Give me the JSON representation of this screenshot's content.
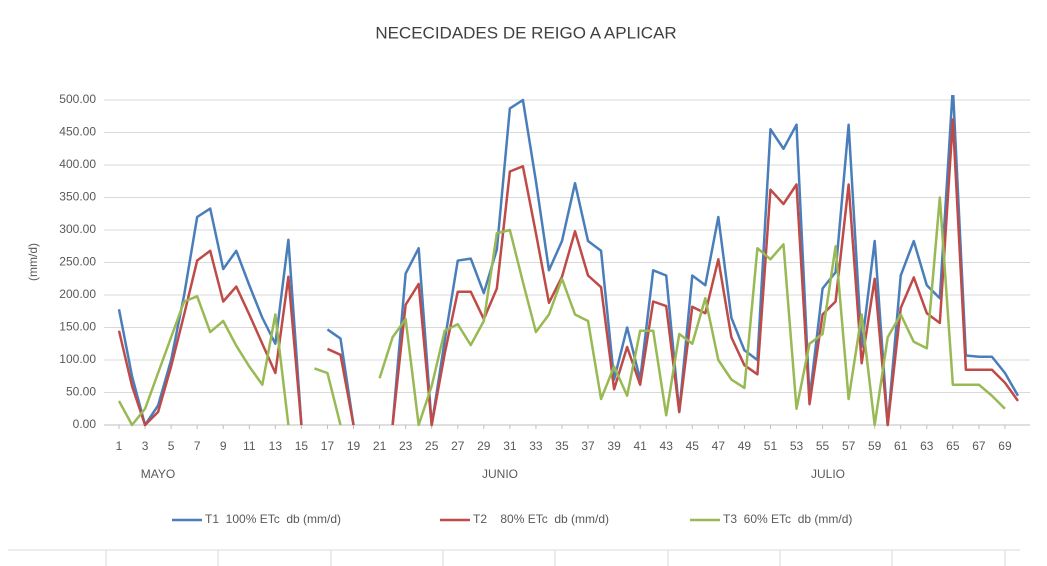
{
  "chart_data": {
    "type": "line",
    "title": "NECECIDADES DE REIGO A APLICAR",
    "y_label": "(mm/d)",
    "annotations": [
      "MAYO",
      "JUNIO",
      "JULIO"
    ],
    "x": [
      1,
      2,
      3,
      4,
      5,
      6,
      7,
      8,
      9,
      10,
      11,
      12,
      13,
      14,
      15,
      16,
      17,
      18,
      19,
      20,
      21,
      22,
      23,
      24,
      25,
      26,
      27,
      28,
      29,
      30,
      31,
      32,
      33,
      34,
      35,
      36,
      37,
      38,
      39,
      40,
      41,
      42,
      43,
      44,
      45,
      46,
      47,
      48,
      49,
      50,
      51,
      52,
      53,
      54,
      55,
      56,
      57,
      58,
      59,
      60,
      61,
      62,
      63,
      64,
      65,
      66,
      67,
      68,
      69,
      70
    ],
    "xlim": [
      1,
      70
    ],
    "xticks": [
      1,
      3,
      5,
      7,
      9,
      11,
      13,
      15,
      17,
      19,
      21,
      23,
      25,
      27,
      29,
      31,
      33,
      35,
      37,
      39,
      41,
      43,
      45,
      47,
      49,
      51,
      53,
      55,
      57,
      59,
      61,
      63,
      65,
      67,
      69
    ],
    "ylim": [
      0,
      500
    ],
    "yticks": [
      {
        "value": 0,
        "label": "0.00"
      },
      {
        "value": 50,
        "label": "50.00"
      },
      {
        "value": 100,
        "label": "100.00"
      },
      {
        "value": 150,
        "label": "150.00"
      },
      {
        "value": 200,
        "label": "200.00"
      },
      {
        "value": 250,
        "label": "250.00"
      },
      {
        "value": 300,
        "label": "300.00"
      },
      {
        "value": 350,
        "label": "350.00"
      },
      {
        "value": 400,
        "label": "400.00"
      },
      {
        "value": 450,
        "label": "450.00"
      },
      {
        "value": 500,
        "label": "500.00"
      }
    ],
    "grid": true,
    "legend": "bottom",
    "series": [
      {
        "name": "T1  100% ETc  db (mm/d)",
        "color": "#4a7ebb",
        "values": [
          178,
          75,
          0,
          30,
          100,
          200,
          320,
          333,
          240,
          268,
          215,
          165,
          125,
          285,
          0,
          null,
          147,
          133,
          0,
          null,
          null,
          0,
          233,
          272,
          0,
          130,
          253,
          256,
          203,
          270,
          487,
          500,
          375,
          238,
          283,
          372,
          283,
          268,
          70,
          150,
          70,
          238,
          230,
          20,
          230,
          215,
          320,
          165,
          115,
          100,
          455,
          425,
          462,
          40,
          210,
          235,
          462,
          120,
          283,
          0,
          230,
          283,
          215,
          195,
          520,
          107,
          105,
          105,
          80,
          45
        ]
      },
      {
        "name": "T2    80% ETc  db (mm/d)",
        "color": "#be4b48",
        "values": [
          145,
          60,
          0,
          20,
          90,
          170,
          253,
          268,
          190,
          213,
          170,
          125,
          80,
          228,
          0,
          null,
          117,
          108,
          0,
          null,
          null,
          0,
          185,
          217,
          0,
          110,
          205,
          205,
          163,
          210,
          390,
          398,
          295,
          188,
          228,
          298,
          230,
          212,
          55,
          120,
          62,
          190,
          183,
          20,
          182,
          172,
          255,
          135,
          92,
          78,
          362,
          340,
          370,
          32,
          170,
          190,
          370,
          95,
          225,
          0,
          180,
          227,
          172,
          157,
          470,
          85,
          85,
          85,
          65,
          37
        ]
      },
      {
        "name": "T3  60% ETc  db (mm/d)",
        "color": "#98b954",
        "values": [
          37,
          0,
          25,
          80,
          135,
          190,
          198,
          143,
          160,
          122,
          90,
          62,
          170,
          0,
          null,
          87,
          80,
          0,
          null,
          null,
          72,
          135,
          163,
          0,
          60,
          145,
          155,
          123,
          160,
          295,
          300,
          220,
          143,
          170,
          225,
          170,
          160,
          40,
          90,
          45,
          145,
          145,
          15,
          140,
          125,
          195,
          100,
          70,
          57,
          272,
          255,
          278,
          25,
          125,
          140,
          275,
          40,
          170,
          0,
          135,
          170,
          128,
          118,
          350,
          62,
          62,
          62,
          45,
          25,
          null
        ]
      }
    ]
  }
}
